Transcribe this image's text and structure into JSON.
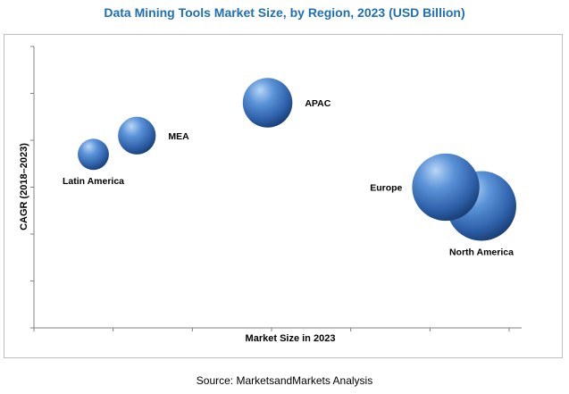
{
  "title": "Data Mining Tools Market Size, by Region, 2023 (USD Billion)",
  "source": "Source: MarketsandMarkets Analysis",
  "colors": {
    "title": "#1f6fb5",
    "bubble_light": "#9cc3ef",
    "bubble_mid": "#4c84cc",
    "bubble_dark": "#1b3f78",
    "axis": "#808080"
  },
  "chart_data": {
    "type": "scatter",
    "variant": "bubble",
    "title": "Data Mining Tools Market Size, by Region, 2023 (USD Billion)",
    "xlabel": "Market Size in 2023",
    "ylabel": "CAGR (2018–2023)",
    "xlim": [
      0,
      12
    ],
    "ylim": [
      0,
      6
    ],
    "x_tick_count": 7,
    "y_tick_count": 7,
    "tick_labels_shown": false,
    "grid": false,
    "legend": "none",
    "points": [
      {
        "label": "Latin America",
        "x": 1.5,
        "y": 3.7,
        "size": 1.5,
        "label_position": "below"
      },
      {
        "label": "MEA",
        "x": 2.6,
        "y": 4.1,
        "size": 2.2,
        "label_position": "right"
      },
      {
        "label": "APAC",
        "x": 5.9,
        "y": 4.8,
        "size": 3.8,
        "label_position": "right"
      },
      {
        "label": "Europe",
        "x": 10.4,
        "y": 3.0,
        "size": 7.0,
        "label_position": "left"
      },
      {
        "label": "North America",
        "x": 11.3,
        "y": 2.6,
        "size": 7.5,
        "label_position": "below"
      }
    ]
  }
}
